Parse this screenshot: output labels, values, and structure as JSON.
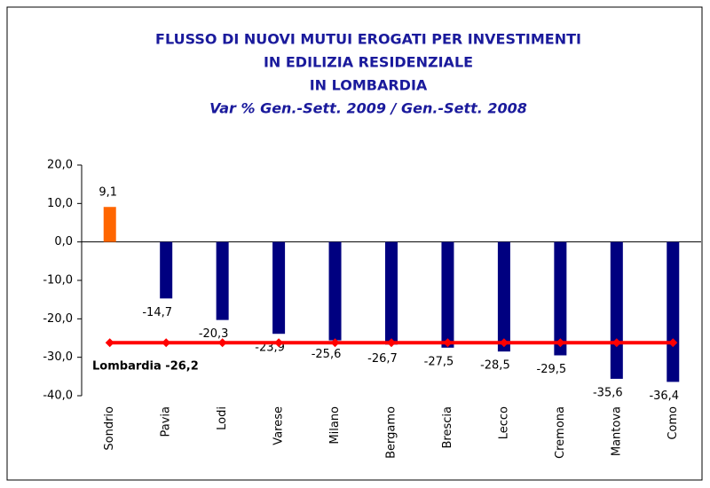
{
  "chart_data": {
    "type": "bar",
    "title": [
      "FLUSSO DI NUOVI MUTUI EROGATI PER INVESTIMENTI",
      "IN EDILIZIA RESIDENZIALE",
      "IN LOMBARDIA"
    ],
    "subtitle": "Var % Gen.-Sett. 2009 / Gen.-Sett. 2008",
    "categories": [
      "Sondrio",
      "Pavia",
      "Lodi",
      "Varese",
      "Milano",
      "Bergamo",
      "Brescia",
      "Lecco",
      "Cremona",
      "Mantova",
      "Como"
    ],
    "values": [
      9.1,
      -14.7,
      -20.3,
      -23.9,
      -25.6,
      -26.7,
      -27.5,
      -28.5,
      -29.5,
      -35.6,
      -36.4
    ],
    "value_labels": [
      "9,1",
      "-14,7",
      "-20,3",
      "-23,9",
      "-25,6",
      "-26,7",
      "-27,5",
      "-28,5",
      "-29,5",
      "-35,6",
      "-36,4"
    ],
    "colors": [
      "#ff6600",
      "#000080",
      "#000080",
      "#000080",
      "#000080",
      "#000080",
      "#000080",
      "#000080",
      "#000080",
      "#000080",
      "#000080"
    ],
    "ylim": [
      -40,
      20
    ],
    "yticks": [
      {
        "value": 20,
        "label": "20,0"
      },
      {
        "value": 10,
        "label": "10,0"
      },
      {
        "value": 0,
        "label": "0,0"
      },
      {
        "value": -10,
        "label": "-10,0"
      },
      {
        "value": -20,
        "label": "-20,0"
      },
      {
        "value": -30,
        "label": "-30,0"
      },
      {
        "value": -40,
        "label": "-40,0"
      }
    ],
    "reference_line": {
      "value": -26.2,
      "label": "Lombardia -26,2",
      "color": "#ff0000"
    }
  }
}
